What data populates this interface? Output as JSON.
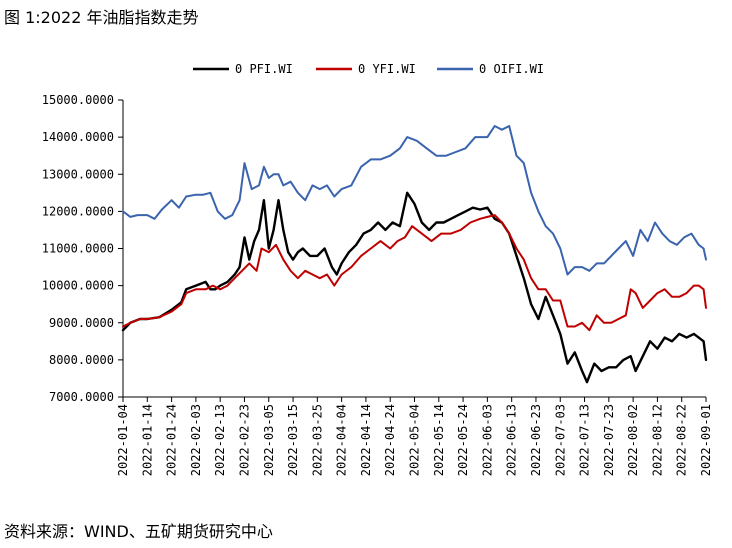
{
  "figure": {
    "title": "图 1:2022 年油脂指数走势",
    "source": "资料来源：WIND、五矿期货研究中心"
  },
  "chart_data": {
    "type": "line",
    "title": "",
    "xlabel": "",
    "ylabel": "",
    "ylim": [
      7000,
      15000
    ],
    "y_ticks": [
      "15000.0000",
      "14000.0000",
      "13000.0000",
      "12000.0000",
      "11000.0000",
      "10000.0000",
      "9000.0000",
      "8000.0000",
      "7000.0000"
    ],
    "x_ticks": [
      "2022-01-04",
      "2022-01-14",
      "2022-01-24",
      "2022-02-03",
      "2022-02-13",
      "2022-02-23",
      "2022-03-05",
      "2022-03-15",
      "2022-03-25",
      "2022-04-04",
      "2022-04-14",
      "2022-04-24",
      "2022-05-04",
      "2022-05-14",
      "2022-05-24",
      "2022-06-03",
      "2022-06-13",
      "2022-06-23",
      "2022-07-03",
      "2022-07-13",
      "2022-07-23",
      "2022-08-02",
      "2022-08-12",
      "2022-08-22",
      "2022-09-01"
    ],
    "legend_position": "top",
    "grid": false,
    "series": [
      {
        "name": "0 PFI.WI",
        "color": "#000000",
        "points": [
          [
            "2022-01-04",
            8800
          ],
          [
            "2022-01-07",
            9000
          ],
          [
            "2022-01-11",
            9100
          ],
          [
            "2022-01-14",
            9100
          ],
          [
            "2022-01-19",
            9150
          ],
          [
            "2022-01-24",
            9350
          ],
          [
            "2022-01-28",
            9550
          ],
          [
            "2022-01-30",
            9900
          ],
          [
            "2022-02-03",
            10000
          ],
          [
            "2022-02-07",
            10100
          ],
          [
            "2022-02-09",
            9900
          ],
          [
            "2022-02-11",
            9900
          ],
          [
            "2022-02-13",
            10000
          ],
          [
            "2022-02-16",
            10100
          ],
          [
            "2022-02-19",
            10300
          ],
          [
            "2022-02-21",
            10500
          ],
          [
            "2022-02-23",
            11300
          ],
          [
            "2022-02-25",
            10700
          ],
          [
            "2022-02-27",
            11200
          ],
          [
            "2022-03-01",
            11500
          ],
          [
            "2022-03-03",
            12300
          ],
          [
            "2022-03-05",
            11000
          ],
          [
            "2022-03-07",
            11500
          ],
          [
            "2022-03-09",
            12300
          ],
          [
            "2022-03-11",
            11500
          ],
          [
            "2022-03-13",
            10900
          ],
          [
            "2022-03-15",
            10700
          ],
          [
            "2022-03-17",
            10900
          ],
          [
            "2022-03-19",
            11000
          ],
          [
            "2022-03-22",
            10800
          ],
          [
            "2022-03-25",
            10800
          ],
          [
            "2022-03-28",
            11000
          ],
          [
            "2022-03-31",
            10500
          ],
          [
            "2022-04-02",
            10300
          ],
          [
            "2022-04-04",
            10600
          ],
          [
            "2022-04-07",
            10900
          ],
          [
            "2022-04-10",
            11100
          ],
          [
            "2022-04-13",
            11400
          ],
          [
            "2022-04-16",
            11500
          ],
          [
            "2022-04-19",
            11700
          ],
          [
            "2022-04-22",
            11500
          ],
          [
            "2022-04-25",
            11700
          ],
          [
            "2022-04-28",
            11600
          ],
          [
            "2022-05-01",
            12500
          ],
          [
            "2022-05-04",
            12200
          ],
          [
            "2022-05-07",
            11700
          ],
          [
            "2022-05-10",
            11500
          ],
          [
            "2022-05-13",
            11700
          ],
          [
            "2022-05-16",
            11700
          ],
          [
            "2022-05-19",
            11800
          ],
          [
            "2022-05-22",
            11900
          ],
          [
            "2022-05-25",
            12000
          ],
          [
            "2022-05-28",
            12100
          ],
          [
            "2022-05-31",
            12050
          ],
          [
            "2022-06-03",
            12100
          ],
          [
            "2022-06-06",
            11800
          ],
          [
            "2022-06-09",
            11700
          ],
          [
            "2022-06-12",
            11400
          ],
          [
            "2022-06-15",
            10800
          ],
          [
            "2022-06-18",
            10200
          ],
          [
            "2022-06-21",
            9500
          ],
          [
            "2022-06-24",
            9100
          ],
          [
            "2022-06-27",
            9700
          ],
          [
            "2022-06-30",
            9200
          ],
          [
            "2022-07-03",
            8700
          ],
          [
            "2022-07-06",
            7900
          ],
          [
            "2022-07-09",
            8200
          ],
          [
            "2022-07-12",
            7700
          ],
          [
            "2022-07-14",
            7400
          ],
          [
            "2022-07-17",
            7900
          ],
          [
            "2022-07-20",
            7700
          ],
          [
            "2022-07-23",
            7800
          ],
          [
            "2022-07-26",
            7800
          ],
          [
            "2022-07-29",
            8000
          ],
          [
            "2022-08-01",
            8100
          ],
          [
            "2022-08-03",
            7700
          ],
          [
            "2022-08-06",
            8100
          ],
          [
            "2022-08-09",
            8500
          ],
          [
            "2022-08-12",
            8300
          ],
          [
            "2022-08-15",
            8600
          ],
          [
            "2022-08-18",
            8500
          ],
          [
            "2022-08-21",
            8700
          ],
          [
            "2022-08-24",
            8600
          ],
          [
            "2022-08-27",
            8700
          ],
          [
            "2022-08-29",
            8600
          ],
          [
            "2022-08-31",
            8500
          ],
          [
            "2022-09-01",
            8000
          ]
        ]
      },
      {
        "name": "0 YFI.WI",
        "color": "#c00000",
        "points": [
          [
            "2022-01-04",
            8900
          ],
          [
            "2022-01-07",
            9000
          ],
          [
            "2022-01-11",
            9100
          ],
          [
            "2022-01-14",
            9100
          ],
          [
            "2022-01-19",
            9150
          ],
          [
            "2022-01-24",
            9300
          ],
          [
            "2022-01-28",
            9500
          ],
          [
            "2022-01-30",
            9800
          ],
          [
            "2022-02-03",
            9900
          ],
          [
            "2022-02-07",
            9900
          ],
          [
            "2022-02-10",
            10000
          ],
          [
            "2022-02-13",
            9900
          ],
          [
            "2022-02-16",
            10000
          ],
          [
            "2022-02-19",
            10200
          ],
          [
            "2022-02-22",
            10400
          ],
          [
            "2022-02-25",
            10600
          ],
          [
            "2022-02-28",
            10400
          ],
          [
            "2022-03-02",
            11000
          ],
          [
            "2022-03-05",
            10900
          ],
          [
            "2022-03-08",
            11100
          ],
          [
            "2022-03-11",
            10700
          ],
          [
            "2022-03-14",
            10400
          ],
          [
            "2022-03-17",
            10200
          ],
          [
            "2022-03-20",
            10400
          ],
          [
            "2022-03-23",
            10300
          ],
          [
            "2022-03-26",
            10200
          ],
          [
            "2022-03-29",
            10300
          ],
          [
            "2022-04-01",
            10000
          ],
          [
            "2022-04-04",
            10300
          ],
          [
            "2022-04-08",
            10500
          ],
          [
            "2022-04-12",
            10800
          ],
          [
            "2022-04-16",
            11000
          ],
          [
            "2022-04-20",
            11200
          ],
          [
            "2022-04-24",
            11000
          ],
          [
            "2022-04-27",
            11200
          ],
          [
            "2022-04-30",
            11300
          ],
          [
            "2022-05-03",
            11600
          ],
          [
            "2022-05-07",
            11400
          ],
          [
            "2022-05-11",
            11200
          ],
          [
            "2022-05-15",
            11400
          ],
          [
            "2022-05-19",
            11400
          ],
          [
            "2022-05-23",
            11500
          ],
          [
            "2022-05-27",
            11700
          ],
          [
            "2022-05-31",
            11800
          ],
          [
            "2022-06-03",
            11850
          ],
          [
            "2022-06-06",
            11900
          ],
          [
            "2022-06-09",
            11700
          ],
          [
            "2022-06-12",
            11400
          ],
          [
            "2022-06-15",
            11000
          ],
          [
            "2022-06-18",
            10700
          ],
          [
            "2022-06-21",
            10200
          ],
          [
            "2022-06-24",
            9900
          ],
          [
            "2022-06-27",
            9900
          ],
          [
            "2022-06-30",
            9600
          ],
          [
            "2022-07-03",
            9600
          ],
          [
            "2022-07-06",
            8900
          ],
          [
            "2022-07-09",
            8900
          ],
          [
            "2022-07-12",
            9000
          ],
          [
            "2022-07-15",
            8800
          ],
          [
            "2022-07-18",
            9200
          ],
          [
            "2022-07-21",
            9000
          ],
          [
            "2022-07-24",
            9000
          ],
          [
            "2022-07-27",
            9100
          ],
          [
            "2022-07-30",
            9200
          ],
          [
            "2022-08-01",
            9900
          ],
          [
            "2022-08-03",
            9800
          ],
          [
            "2022-08-06",
            9400
          ],
          [
            "2022-08-09",
            9600
          ],
          [
            "2022-08-12",
            9800
          ],
          [
            "2022-08-15",
            9900
          ],
          [
            "2022-08-18",
            9700
          ],
          [
            "2022-08-21",
            9700
          ],
          [
            "2022-08-24",
            9800
          ],
          [
            "2022-08-27",
            10000
          ],
          [
            "2022-08-29",
            10000
          ],
          [
            "2022-08-31",
            9900
          ],
          [
            "2022-09-01",
            9400
          ]
        ]
      },
      {
        "name": "0 OIFI.WI",
        "color": "#3a64ad",
        "points": [
          [
            "2022-01-04",
            12000
          ],
          [
            "2022-01-07",
            11850
          ],
          [
            "2022-01-10",
            11900
          ],
          [
            "2022-01-14",
            11900
          ],
          [
            "2022-01-17",
            11800
          ],
          [
            "2022-01-20",
            12050
          ],
          [
            "2022-01-24",
            12300
          ],
          [
            "2022-01-27",
            12100
          ],
          [
            "2022-01-30",
            12400
          ],
          [
            "2022-02-03",
            12450
          ],
          [
            "2022-02-06",
            12450
          ],
          [
            "2022-02-09",
            12500
          ],
          [
            "2022-02-12",
            12000
          ],
          [
            "2022-02-15",
            11800
          ],
          [
            "2022-02-18",
            11900
          ],
          [
            "2022-02-21",
            12300
          ],
          [
            "2022-02-23",
            13300
          ],
          [
            "2022-02-26",
            12600
          ],
          [
            "2022-03-01",
            12700
          ],
          [
            "2022-03-03",
            13200
          ],
          [
            "2022-03-05",
            12900
          ],
          [
            "2022-03-07",
            13000
          ],
          [
            "2022-03-09",
            13000
          ],
          [
            "2022-03-11",
            12700
          ],
          [
            "2022-03-14",
            12800
          ],
          [
            "2022-03-17",
            12500
          ],
          [
            "2022-03-20",
            12300
          ],
          [
            "2022-03-23",
            12700
          ],
          [
            "2022-03-26",
            12600
          ],
          [
            "2022-03-29",
            12700
          ],
          [
            "2022-04-01",
            12400
          ],
          [
            "2022-04-04",
            12600
          ],
          [
            "2022-04-08",
            12700
          ],
          [
            "2022-04-12",
            13200
          ],
          [
            "2022-04-16",
            13400
          ],
          [
            "2022-04-20",
            13400
          ],
          [
            "2022-04-24",
            13500
          ],
          [
            "2022-04-28",
            13700
          ],
          [
            "2022-05-01",
            14000
          ],
          [
            "2022-05-05",
            13900
          ],
          [
            "2022-05-09",
            13700
          ],
          [
            "2022-05-13",
            13500
          ],
          [
            "2022-05-17",
            13500
          ],
          [
            "2022-05-21",
            13600
          ],
          [
            "2022-05-25",
            13700
          ],
          [
            "2022-05-29",
            14000
          ],
          [
            "2022-06-03",
            14000
          ],
          [
            "2022-06-06",
            14300
          ],
          [
            "2022-06-09",
            14200
          ],
          [
            "2022-06-12",
            14300
          ],
          [
            "2022-06-15",
            13500
          ],
          [
            "2022-06-18",
            13300
          ],
          [
            "2022-06-21",
            12500
          ],
          [
            "2022-06-24",
            12000
          ],
          [
            "2022-06-27",
            11600
          ],
          [
            "2022-06-30",
            11400
          ],
          [
            "2022-07-03",
            11000
          ],
          [
            "2022-07-06",
            10300
          ],
          [
            "2022-07-09",
            10500
          ],
          [
            "2022-07-12",
            10500
          ],
          [
            "2022-07-15",
            10400
          ],
          [
            "2022-07-18",
            10600
          ],
          [
            "2022-07-21",
            10600
          ],
          [
            "2022-07-24",
            10800
          ],
          [
            "2022-07-27",
            11000
          ],
          [
            "2022-07-30",
            11200
          ],
          [
            "2022-08-02",
            10800
          ],
          [
            "2022-08-05",
            11500
          ],
          [
            "2022-08-08",
            11200
          ],
          [
            "2022-08-11",
            11700
          ],
          [
            "2022-08-14",
            11400
          ],
          [
            "2022-08-17",
            11200
          ],
          [
            "2022-08-20",
            11100
          ],
          [
            "2022-08-23",
            11300
          ],
          [
            "2022-08-26",
            11400
          ],
          [
            "2022-08-29",
            11100
          ],
          [
            "2022-08-31",
            11000
          ],
          [
            "2022-09-01",
            10700
          ]
        ]
      }
    ]
  }
}
